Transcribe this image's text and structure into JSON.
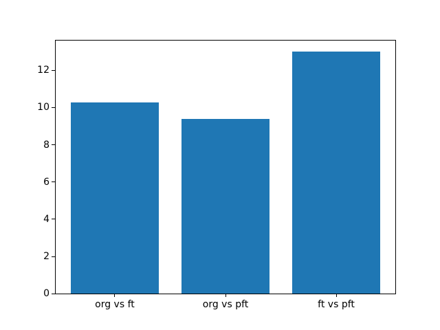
{
  "figure": {
    "background": "#ffffff"
  },
  "chart_data": {
    "type": "bar",
    "title": "",
    "xlabel": "",
    "ylabel": "",
    "categories": [
      "org vs ft",
      "org vs pft",
      "ft vs pft"
    ],
    "values": [
      10.28,
      9.38,
      13.0
    ],
    "bar_color": "#1f77b4",
    "ylim": [
      0,
      13.65
    ],
    "yticks": [
      0,
      2,
      4,
      6,
      8,
      10,
      12
    ],
    "grid": false,
    "legend": false,
    "spine_color": "#000000"
  }
}
